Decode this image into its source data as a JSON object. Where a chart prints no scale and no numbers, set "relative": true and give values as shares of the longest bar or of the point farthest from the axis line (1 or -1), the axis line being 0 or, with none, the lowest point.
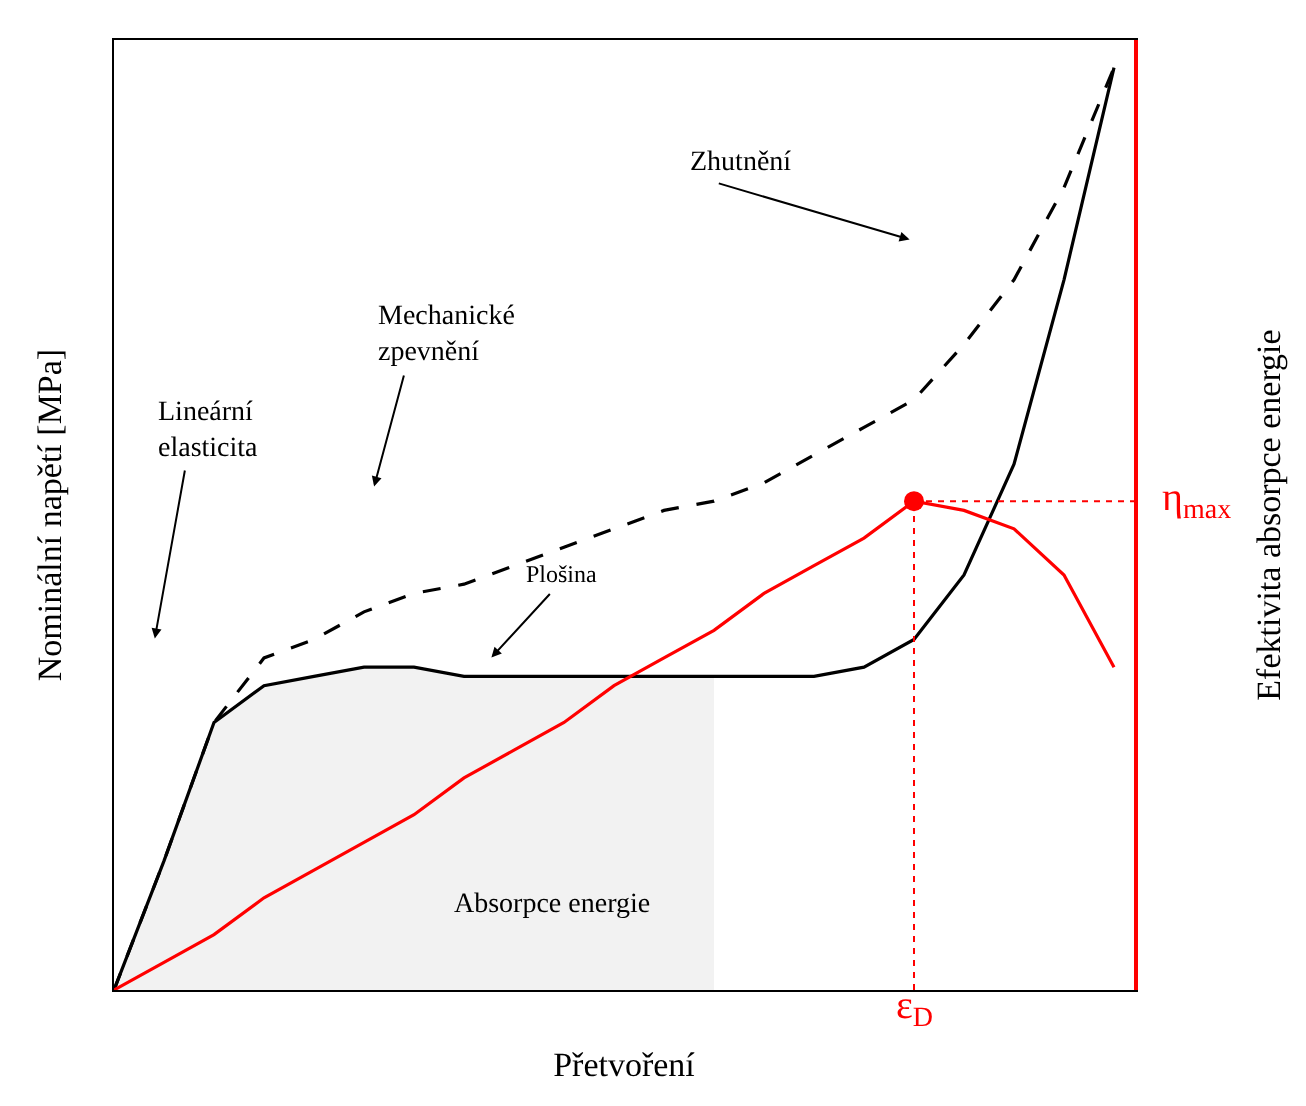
{
  "chart_data": {
    "type": "line",
    "relative": true,
    "xlabel": "Přetvoření",
    "ylabel": "Nominální napětí [MPa]",
    "y2label": "Efektivita absorpce energie",
    "categories": [
      null,
      null,
      null,
      null,
      null,
      null,
      null,
      null,
      null,
      null,
      null,
      null,
      null,
      null,
      null,
      null,
      null,
      null,
      null,
      null,
      null
    ],
    "series": [
      {
        "type": "area",
        "color": "#f2f2f2",
        "values": [
          0,
          0.14,
          0.29,
          0.33,
          0.34,
          0.35,
          0.35,
          0.34,
          0.34,
          0.34,
          0.34,
          0.34,
          0.34,
          null,
          null,
          null,
          null,
          null,
          null,
          null,
          null
        ]
      },
      {
        "color": "#000000",
        "line_style": "dashed",
        "values": [
          0,
          0.14,
          0.29,
          0.36,
          0.38,
          0.41,
          0.43,
          0.44,
          0.46,
          0.48,
          0.5,
          0.52,
          0.53,
          0.55,
          0.58,
          0.61,
          0.64,
          0.7,
          0.77,
          0.87,
          1
        ]
      },
      {
        "color": "#000000",
        "line_style": "solid",
        "values": [
          0,
          0.14,
          0.29,
          0.33,
          0.34,
          0.35,
          0.35,
          0.34,
          0.34,
          0.34,
          0.34,
          0.34,
          0.34,
          0.34,
          0.34,
          0.35,
          0.38,
          0.45,
          0.57,
          0.77,
          1
        ]
      },
      {
        "color": "#ff0000",
        "line_style": "solid",
        "values": [
          0,
          0.03,
          0.06,
          0.1,
          0.13,
          0.16,
          0.19,
          0.23,
          0.26,
          0.29,
          0.33,
          0.36,
          0.39,
          0.43,
          0.46,
          0.49,
          0.53,
          0.52,
          0.5,
          0.45,
          0.35
        ]
      }
    ],
    "annotations": [
      "Zhutnění",
      "Mechanické zpevnění",
      "Lineární elasticita",
      "Plošina",
      "Absorpce energie",
      "ε$_{D}$",
      "η$_{max}$"
    ]
  }
}
